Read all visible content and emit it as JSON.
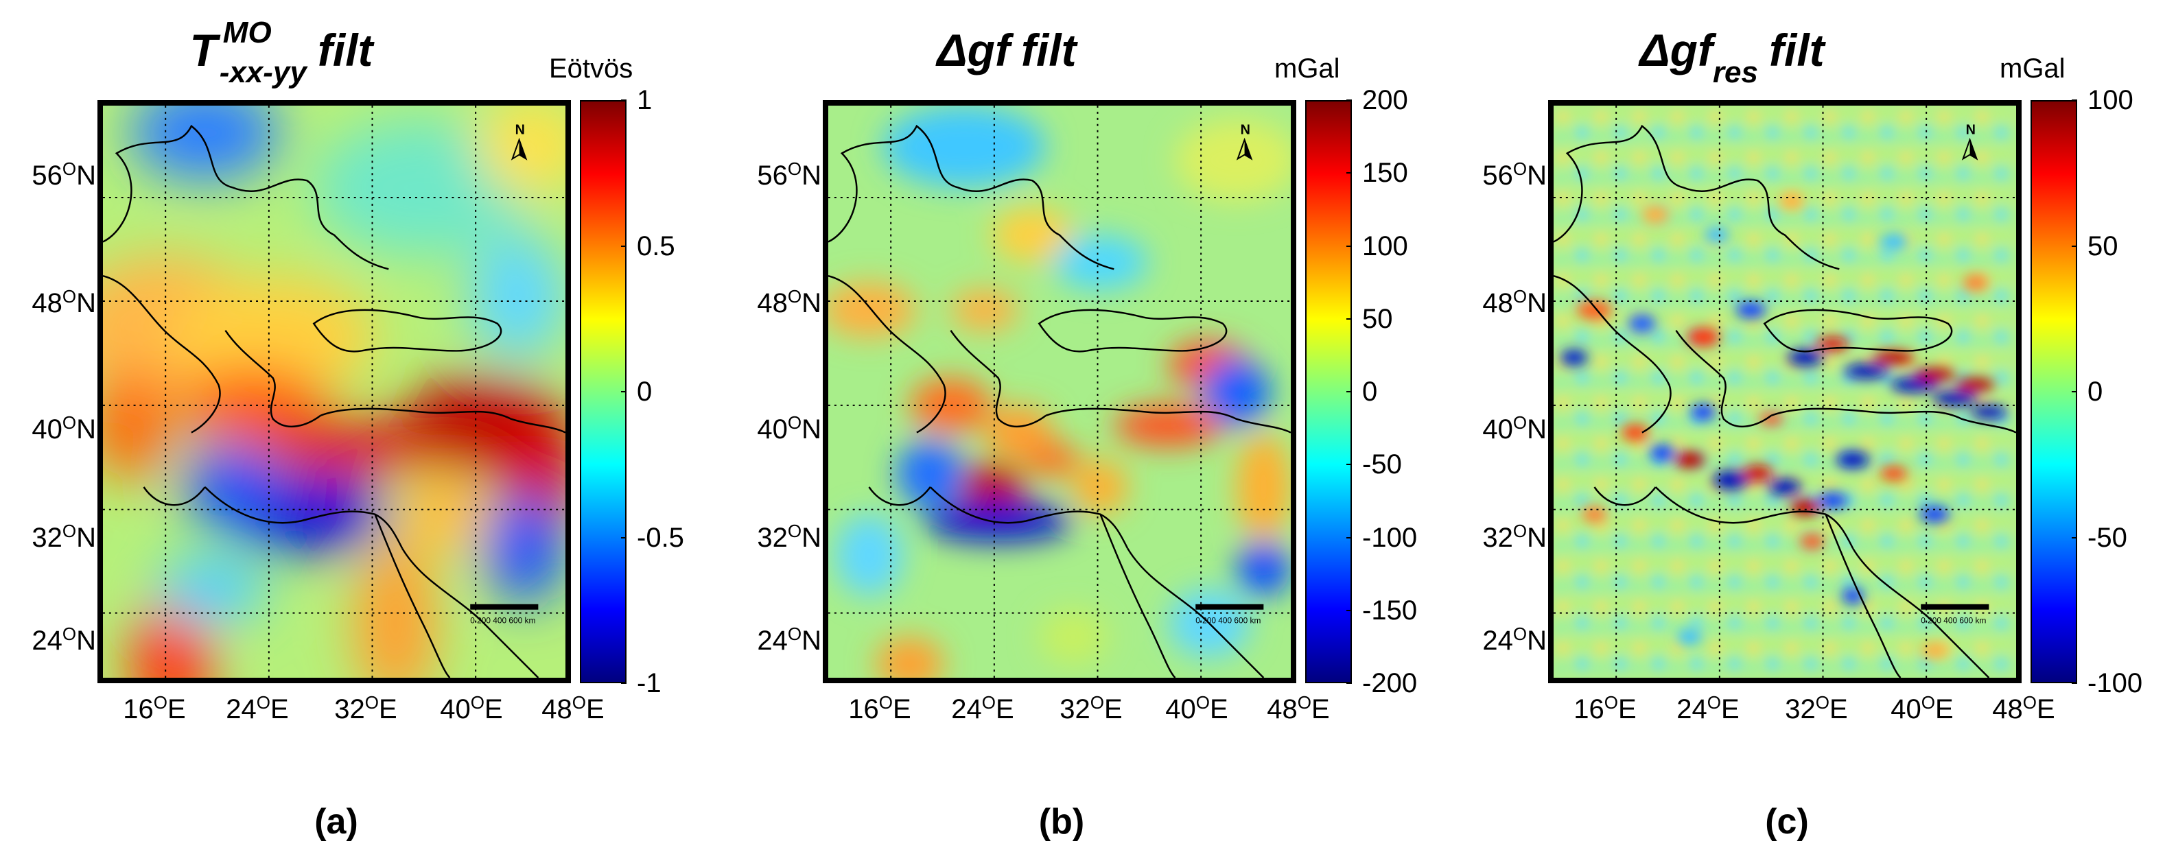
{
  "panels": [
    {
      "title_main": "T",
      "title_sup": "MO",
      "title_sub": "-xx-yy",
      "title_rest": "filt",
      "unit": "Eötvös",
      "colorbar_ticks": [
        "1",
        "0.5",
        "0",
        "-0.5",
        "-1"
      ],
      "colorbar_range": [
        -1,
        1
      ],
      "label": "(a)"
    },
    {
      "title_main": "Δgf",
      "title_sup": "",
      "title_sub": "",
      "title_rest": "filt",
      "unit": "mGal",
      "colorbar_ticks": [
        "200",
        "150",
        "100",
        "50",
        "0",
        "-50",
        "-100",
        "-150",
        "-200"
      ],
      "colorbar_range": [
        -200,
        200
      ],
      "label": "(b)"
    },
    {
      "title_main": "Δgf",
      "title_sup": "",
      "title_sub": "res",
      "title_rest": "filt",
      "unit": "mGal",
      "colorbar_ticks": [
        "100",
        "50",
        "0",
        "-50",
        "-100"
      ],
      "colorbar_range": [
        -100,
        100
      ],
      "label": "(c)"
    }
  ],
  "lat_labels": [
    {
      "value": "56",
      "hemi": "N"
    },
    {
      "value": "48",
      "hemi": "N"
    },
    {
      "value": "40",
      "hemi": "N"
    },
    {
      "value": "32",
      "hemi": "N"
    },
    {
      "value": "24",
      "hemi": "N"
    }
  ],
  "lon_labels": [
    {
      "value": "16",
      "hemi": "E"
    },
    {
      "value": "24",
      "hemi": "E"
    },
    {
      "value": "32",
      "hemi": "E"
    },
    {
      "value": "40",
      "hemi": "E"
    },
    {
      "value": "48",
      "hemi": "E"
    }
  ],
  "deg_symbol": "O",
  "scale_bar_text": "0  200 400 600  km",
  "north_arrow": "N",
  "colormap": [
    "#00007f",
    "#0000ff",
    "#007fff",
    "#00ffff",
    "#7fff7f",
    "#ffff00",
    "#ff7f00",
    "#ff0000",
    "#7f0000"
  ]
}
